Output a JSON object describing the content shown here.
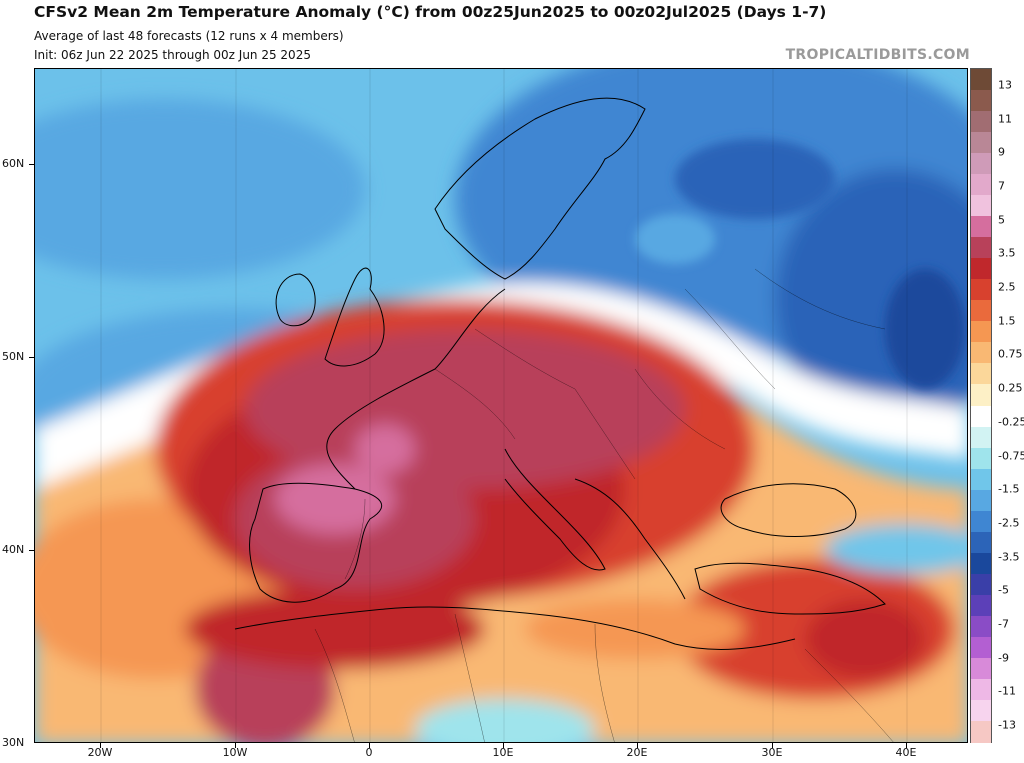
{
  "header": {
    "title": "CFSv2 Mean 2m Temperature Anomaly (°C) from 00z25Jun2025 to 00z02Jul2025 (Days 1-7)",
    "subtitle_1": "Average of last 48 forecasts (12 runs x 4 members)",
    "subtitle_2": "Init: 06z Jun 22 2025 through 00z Jun 25 2025",
    "brand": "TROPICALTIDBITS.COM"
  },
  "map": {
    "lat_labels": [
      "60N",
      "50N",
      "40N",
      "30N"
    ],
    "lon_labels": [
      "20W",
      "10W",
      "0",
      "10E",
      "20E",
      "30E",
      "40E"
    ]
  },
  "colorbar": {
    "labels": [
      "13",
      "11",
      "9",
      "7",
      "5",
      "3.5",
      "2.5",
      "1.5",
      "0.75",
      "0.25",
      "-0.25",
      "-0.75",
      "-1.5",
      "-2.5",
      "-3.5",
      "-5",
      "-7",
      "-9",
      "-11",
      "-13"
    ],
    "colors": [
      "#6e4a36",
      "#8b5a4d",
      "#a16d72",
      "#b98796",
      "#cf9bb8",
      "#e2a9cb",
      "#f0c2de",
      "#d56e9e",
      "#b8415a",
      "#c0282c",
      "#d8412e",
      "#ea6a3c",
      "#f59752",
      "#f9b873",
      "#fbd79a",
      "#fdf0c6",
      "#ffffff",
      "#d2f3f3",
      "#9fe4ec",
      "#70c6ea",
      "#58a8e2",
      "#3f86d2",
      "#2c64b8",
      "#1a489c",
      "#3a3fa8",
      "#5c40b8",
      "#8a4cc6",
      "#b35fd2",
      "#d88ad9",
      "#eeb8e6",
      "#f7d4ee",
      "#f6c8c4"
    ]
  }
}
